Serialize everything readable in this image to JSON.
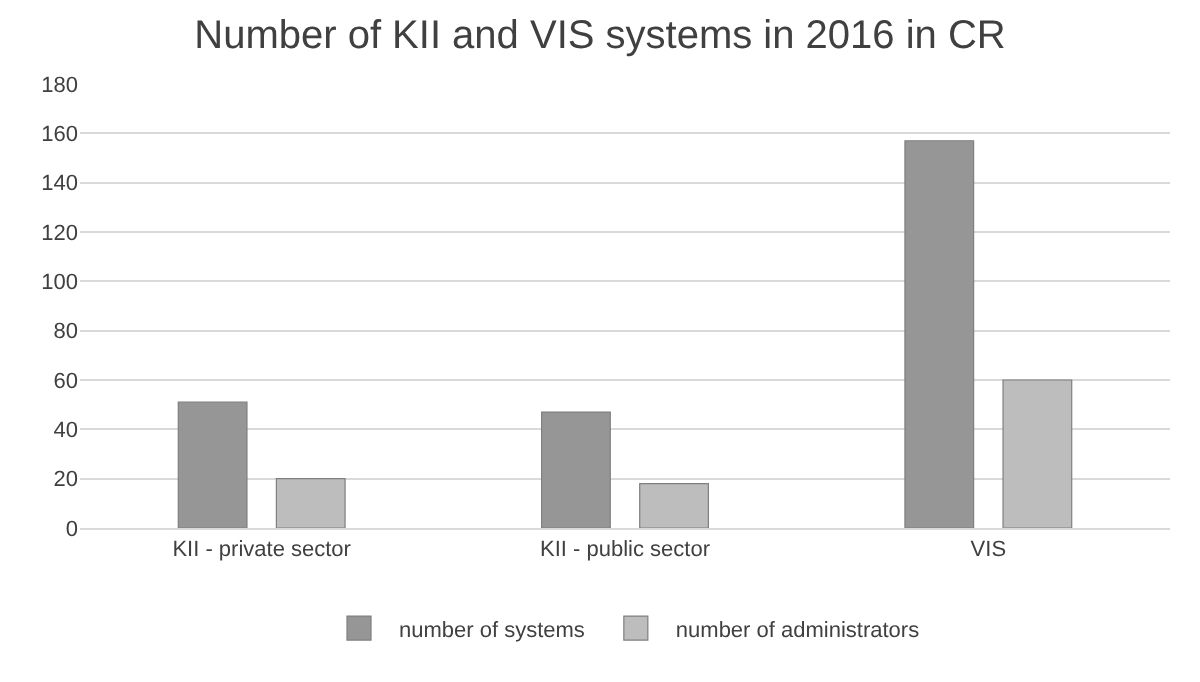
{
  "chart_data": {
    "type": "bar",
    "title": "Number of KII and VIS systems in 2016 in CR",
    "categories": [
      "KII - private sector",
      "KII - public sector",
      "VIS"
    ],
    "series": [
      {
        "name": "number of systems",
        "color": "#969696",
        "values": [
          51,
          47,
          157
        ]
      },
      {
        "name": "number of administrators",
        "color": "#bdbdbd",
        "values": [
          20,
          18,
          60
        ]
      }
    ],
    "ylim": [
      0,
      180
    ],
    "yticks": [
      0,
      20,
      40,
      60,
      80,
      100,
      120,
      140,
      160,
      180
    ],
    "grid": "y",
    "legend": "bottom"
  }
}
